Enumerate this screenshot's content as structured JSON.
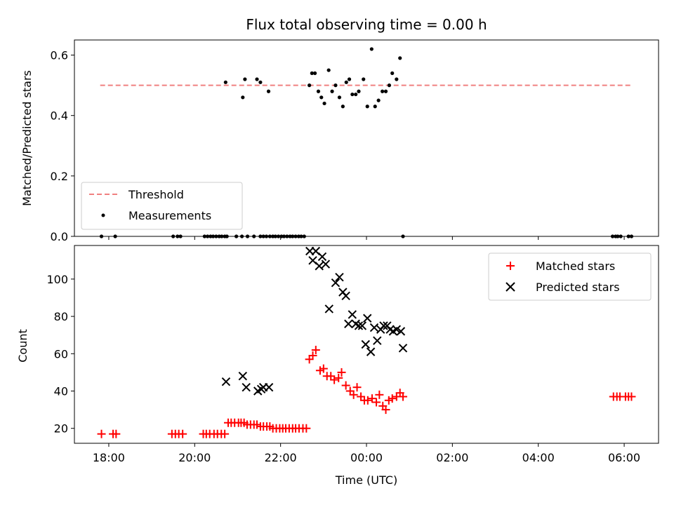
{
  "chart_data": [
    {
      "type": "scatter",
      "title": "Flux total observing time = 0.00 h",
      "ylabel": "Matched/Predicted stars",
      "xlabel": "",
      "xlim_hours": [
        17.2,
        30.8
      ],
      "ylim": [
        0,
        0.65
      ],
      "yticks": [
        0.0,
        0.2,
        0.4,
        0.6
      ],
      "ytick_labels": [
        "0.0",
        "0.2",
        "0.4",
        "0.6"
      ],
      "legend_position": "lower-left",
      "colors": {
        "threshold": "#f08080",
        "measurements": "#000000"
      },
      "threshold": {
        "name": "Threshold",
        "y": 0.5,
        "x_range_hours": [
          17.8,
          30.2
        ]
      },
      "series": [
        {
          "name": "Measurements",
          "x_hours": [
            17.83,
            18.15,
            19.5,
            19.6,
            19.67,
            20.23,
            20.3,
            20.37,
            20.43,
            20.5,
            20.57,
            20.63,
            20.7,
            20.75,
            20.97,
            21.1,
            21.23,
            21.38,
            21.53,
            21.6,
            21.67,
            21.75,
            21.82,
            21.88,
            21.95,
            22.02,
            22.08,
            22.15,
            22.22,
            22.28,
            22.35,
            22.42,
            22.48,
            22.55,
            20.72,
            21.12,
            21.17,
            21.45,
            21.53,
            21.72,
            22.67,
            22.73,
            22.8,
            22.88,
            22.95,
            23.02,
            23.12,
            23.2,
            23.28,
            23.37,
            23.45,
            23.53,
            23.6,
            23.67,
            23.75,
            23.82,
            23.93,
            24.02,
            24.12,
            24.2,
            24.28,
            24.37,
            24.45,
            24.53,
            24.6,
            24.7,
            24.78,
            24.85,
            29.73,
            29.8,
            29.85,
            29.92,
            30.1,
            30.17
          ],
          "y": [
            0,
            0,
            0,
            0,
            0,
            0,
            0,
            0,
            0,
            0,
            0,
            0,
            0,
            0,
            0,
            0,
            0,
            0,
            0,
            0,
            0,
            0,
            0,
            0,
            0,
            0,
            0,
            0,
            0,
            0,
            0,
            0,
            0,
            0,
            0.51,
            0.46,
            0.52,
            0.52,
            0.51,
            0.48,
            0.5,
            0.54,
            0.54,
            0.48,
            0.46,
            0.44,
            0.55,
            0.48,
            0.5,
            0.46,
            0.43,
            0.51,
            0.52,
            0.47,
            0.47,
            0.48,
            0.52,
            0.43,
            0.62,
            0.43,
            0.45,
            0.48,
            0.48,
            0.5,
            0.54,
            0.52,
            0.59,
            0,
            0,
            0,
            0,
            0,
            0,
            0
          ]
        }
      ]
    },
    {
      "type": "scatter",
      "title": "",
      "xlabel": "Time (UTC)",
      "ylabel": "Count",
      "xlim_hours": [
        17.2,
        30.8
      ],
      "ylim": [
        12,
        118
      ],
      "xticks_hours": [
        18,
        20,
        22,
        24,
        26,
        28,
        30
      ],
      "xtick_labels": [
        "18:00",
        "20:00",
        "22:00",
        "00:00",
        "02:00",
        "04:00",
        "06:00"
      ],
      "yticks": [
        20,
        40,
        60,
        80,
        100
      ],
      "ytick_labels": [
        "20",
        "40",
        "60",
        "80",
        "100"
      ],
      "legend_position": "top-right",
      "colors": {
        "matched": "#ff0000",
        "predicted": "#000000"
      },
      "series": [
        {
          "name": "Matched stars",
          "marker": "plus",
          "x_hours": [
            17.83,
            18.1,
            18.17,
            19.47,
            19.55,
            19.63,
            19.72,
            20.2,
            20.27,
            20.35,
            20.45,
            20.53,
            20.62,
            20.7,
            20.78,
            20.85,
            20.93,
            21.02,
            21.08,
            21.15,
            21.22,
            21.3,
            21.38,
            21.45,
            21.53,
            21.6,
            21.68,
            21.75,
            21.82,
            21.9,
            21.98,
            22.05,
            22.12,
            22.2,
            22.28,
            22.35,
            22.43,
            22.52,
            22.6,
            22.67,
            22.75,
            22.82,
            22.92,
            23.0,
            23.08,
            23.17,
            23.25,
            23.35,
            23.42,
            23.52,
            23.62,
            23.7,
            23.78,
            23.87,
            23.95,
            24.03,
            24.13,
            24.23,
            24.3,
            24.38,
            24.45,
            24.52,
            24.6,
            24.7,
            24.78,
            24.85,
            29.75,
            29.83,
            29.9,
            30.03,
            30.1,
            30.17
          ],
          "y": [
            17,
            17,
            17,
            17,
            17,
            17,
            17,
            17,
            17,
            17,
            17,
            17,
            17,
            17,
            23,
            23,
            23,
            23,
            23,
            23,
            22,
            22,
            22,
            22,
            21,
            21,
            21,
            21,
            20,
            20,
            20,
            20,
            20,
            20,
            20,
            20,
            20,
            20,
            20,
            57,
            59,
            62,
            51,
            52,
            48,
            48,
            46,
            47,
            50,
            43,
            40,
            38,
            42,
            37,
            35,
            35,
            36,
            34,
            38,
            32,
            30,
            35,
            36,
            37,
            39,
            37,
            37,
            37,
            37,
            37,
            37,
            37
          ]
        },
        {
          "name": "Predicted stars",
          "marker": "x",
          "x_hours": [
            20.73,
            21.12,
            21.2,
            21.47,
            21.55,
            21.6,
            21.73,
            22.68,
            22.75,
            22.82,
            22.9,
            22.97,
            23.05,
            23.13,
            23.28,
            23.37,
            23.45,
            23.52,
            23.58,
            23.67,
            23.75,
            23.82,
            23.9,
            23.98,
            24.02,
            24.1,
            24.18,
            24.25,
            24.33,
            24.4,
            24.48,
            24.55,
            24.62,
            24.7,
            24.8,
            24.85
          ],
          "y": [
            45,
            48,
            42,
            40,
            41,
            42,
            42,
            115,
            110,
            115,
            107,
            112,
            108,
            84,
            98,
            101,
            93,
            91,
            76,
            81,
            76,
            75,
            75,
            65,
            79,
            61,
            74,
            67,
            73,
            75,
            75,
            73,
            72,
            73,
            72,
            63
          ]
        }
      ]
    }
  ]
}
